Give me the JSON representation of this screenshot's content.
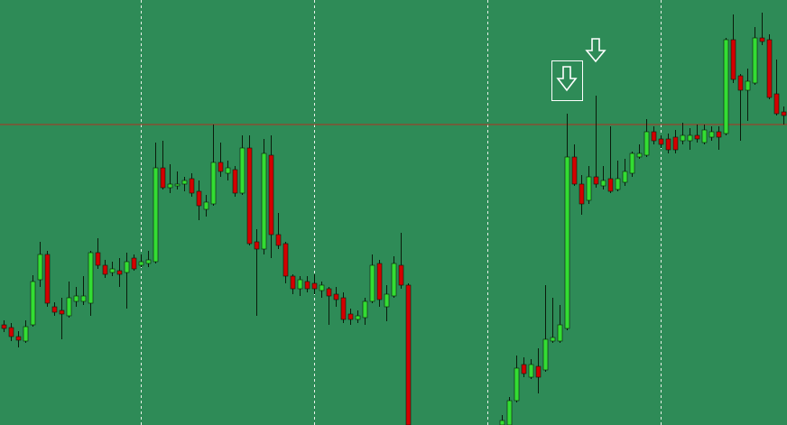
{
  "chart_data": {
    "type": "candlestick",
    "open": [
      111,
      108,
      98,
      93,
      111,
      161,
      189,
      131,
      127,
      121,
      137,
      137,
      135,
      191,
      177,
      169,
      171,
      169,
      185,
      177,
      179,
      181,
      285,
      263,
      265,
      267,
      273,
      259,
      239,
      245,
      291,
      279,
      283,
      257,
      307,
      203,
      195,
      299,
      211,
      201,
      165,
      151,
      159,
      157,
      149,
      151,
      145,
      141,
      123,
      117,
      119,
      137,
      179,
      131,
      143,
      177,
      155,
      null,
      null,
      null,
      null,
      null,
      null,
      null,
      null,
      null,
      null,
      null,
      null,
      0,
      0,
      27,
      67,
      53,
      65,
      61,
      93,
      93,
      107,
      297,
      267,
      249,
      275,
      265,
      273,
      261,
      269,
      279,
      297,
      299,
      325,
      317,
      317,
      319,
      315,
      315,
      321,
      313,
      319,
      325,
      323,
      427,
      387,
      371,
      379,
      429,
      427,
      367,
      347
    ],
    "high": [
      116,
      113,
      104,
      116,
      166,
      203,
      193,
      136,
      141,
      159,
      153,
      165,
      193,
      207,
      183,
      181,
      185,
      191,
      189,
      189,
      193,
      313,
      315,
      289,
      281,
      275,
      279,
      271,
      255,
      333,
      313,
      293,
      287,
      321,
      321,
      217,
      317,
      321,
      235,
      203,
      167,
      165,
      165,
      167,
      159,
      153,
      153,
      147,
      129,
      127,
      141,
      189,
      183,
      155,
      187,
      213,
      157,
      null,
      null,
      null,
      null,
      null,
      null,
      null,
      null,
      null,
      null,
      null,
      null,
      11,
      31,
      77,
      75,
      73,
      85,
      155,
      141,
      133,
      345,
      311,
      277,
      287,
      365,
      287,
      331,
      293,
      295,
      303,
      311,
      339,
      331,
      321,
      323,
      327,
      335,
      329,
      333,
      333,
      331,
      331,
      429,
      455,
      389,
      395,
      441,
      457,
      433,
      405,
      353
    ],
    "low": [
      103,
      93,
      86,
      91,
      109,
      153,
      131,
      121,
      95,
      119,
      131,
      133,
      121,
      173,
      163,
      165,
      153,
      129,
      171,
      175,
      175,
      179,
      261,
      257,
      261,
      259,
      253,
      227,
      231,
      243,
      275,
      271,
      253,
      255,
      199,
      121,
      189,
      185,
      195,
      157,
      145,
      143,
      147,
      145,
      141,
      111,
      131,
      113,
      111,
      113,
      111,
      135,
      131,
      115,
      141,
      151,
      0,
      null,
      null,
      null,
      null,
      null,
      null,
      null,
      null,
      null,
      null,
      null,
      null,
      0,
      0,
      25,
      53,
      51,
      35,
      59,
      91,
      91,
      105,
      265,
      233,
      245,
      263,
      261,
      257,
      259,
      265,
      275,
      295,
      297,
      311,
      307,
      301,
      301,
      311,
      305,
      313,
      311,
      315,
      305,
      321,
      379,
      315,
      337,
      377,
      421,
      361,
      343,
      333
    ],
    "close": [
      107,
      98,
      94,
      109,
      159,
      189,
      135,
      125,
      123,
      141,
      143,
      143,
      191,
      177,
      167,
      173,
      167,
      181,
      173,
      181,
      183,
      285,
      263,
      267,
      267,
      271,
      257,
      243,
      247,
      291,
      281,
      285,
      257,
      307,
      201,
      195,
      301,
      211,
      199,
      165,
      151,
      161,
      151,
      151,
      155,
      143,
      139,
      117,
      117,
      121,
      137,
      177,
      139,
      145,
      179,
      155,
      0,
      null,
      null,
      null,
      null,
      null,
      null,
      null,
      null,
      null,
      null,
      null,
      null,
      5,
      27,
      63,
      57,
      67,
      53,
      95,
      97,
      111,
      297,
      267,
      245,
      275,
      267,
      271,
      259,
      273,
      281,
      301,
      301,
      325,
      315,
      311,
      305,
      305,
      321,
      321,
      317,
      327,
      325,
      319,
      427,
      383,
      371,
      381,
      429,
      425,
      363,
      345,
      343
    ],
    "ylim": [
      0,
      471
    ],
    "level": 333,
    "level_color": "#b03020",
    "up_color": "#33dd33",
    "down_color": "#d40000",
    "wick_color": "#0a1a0a",
    "background": "#2e8b57"
  }
}
